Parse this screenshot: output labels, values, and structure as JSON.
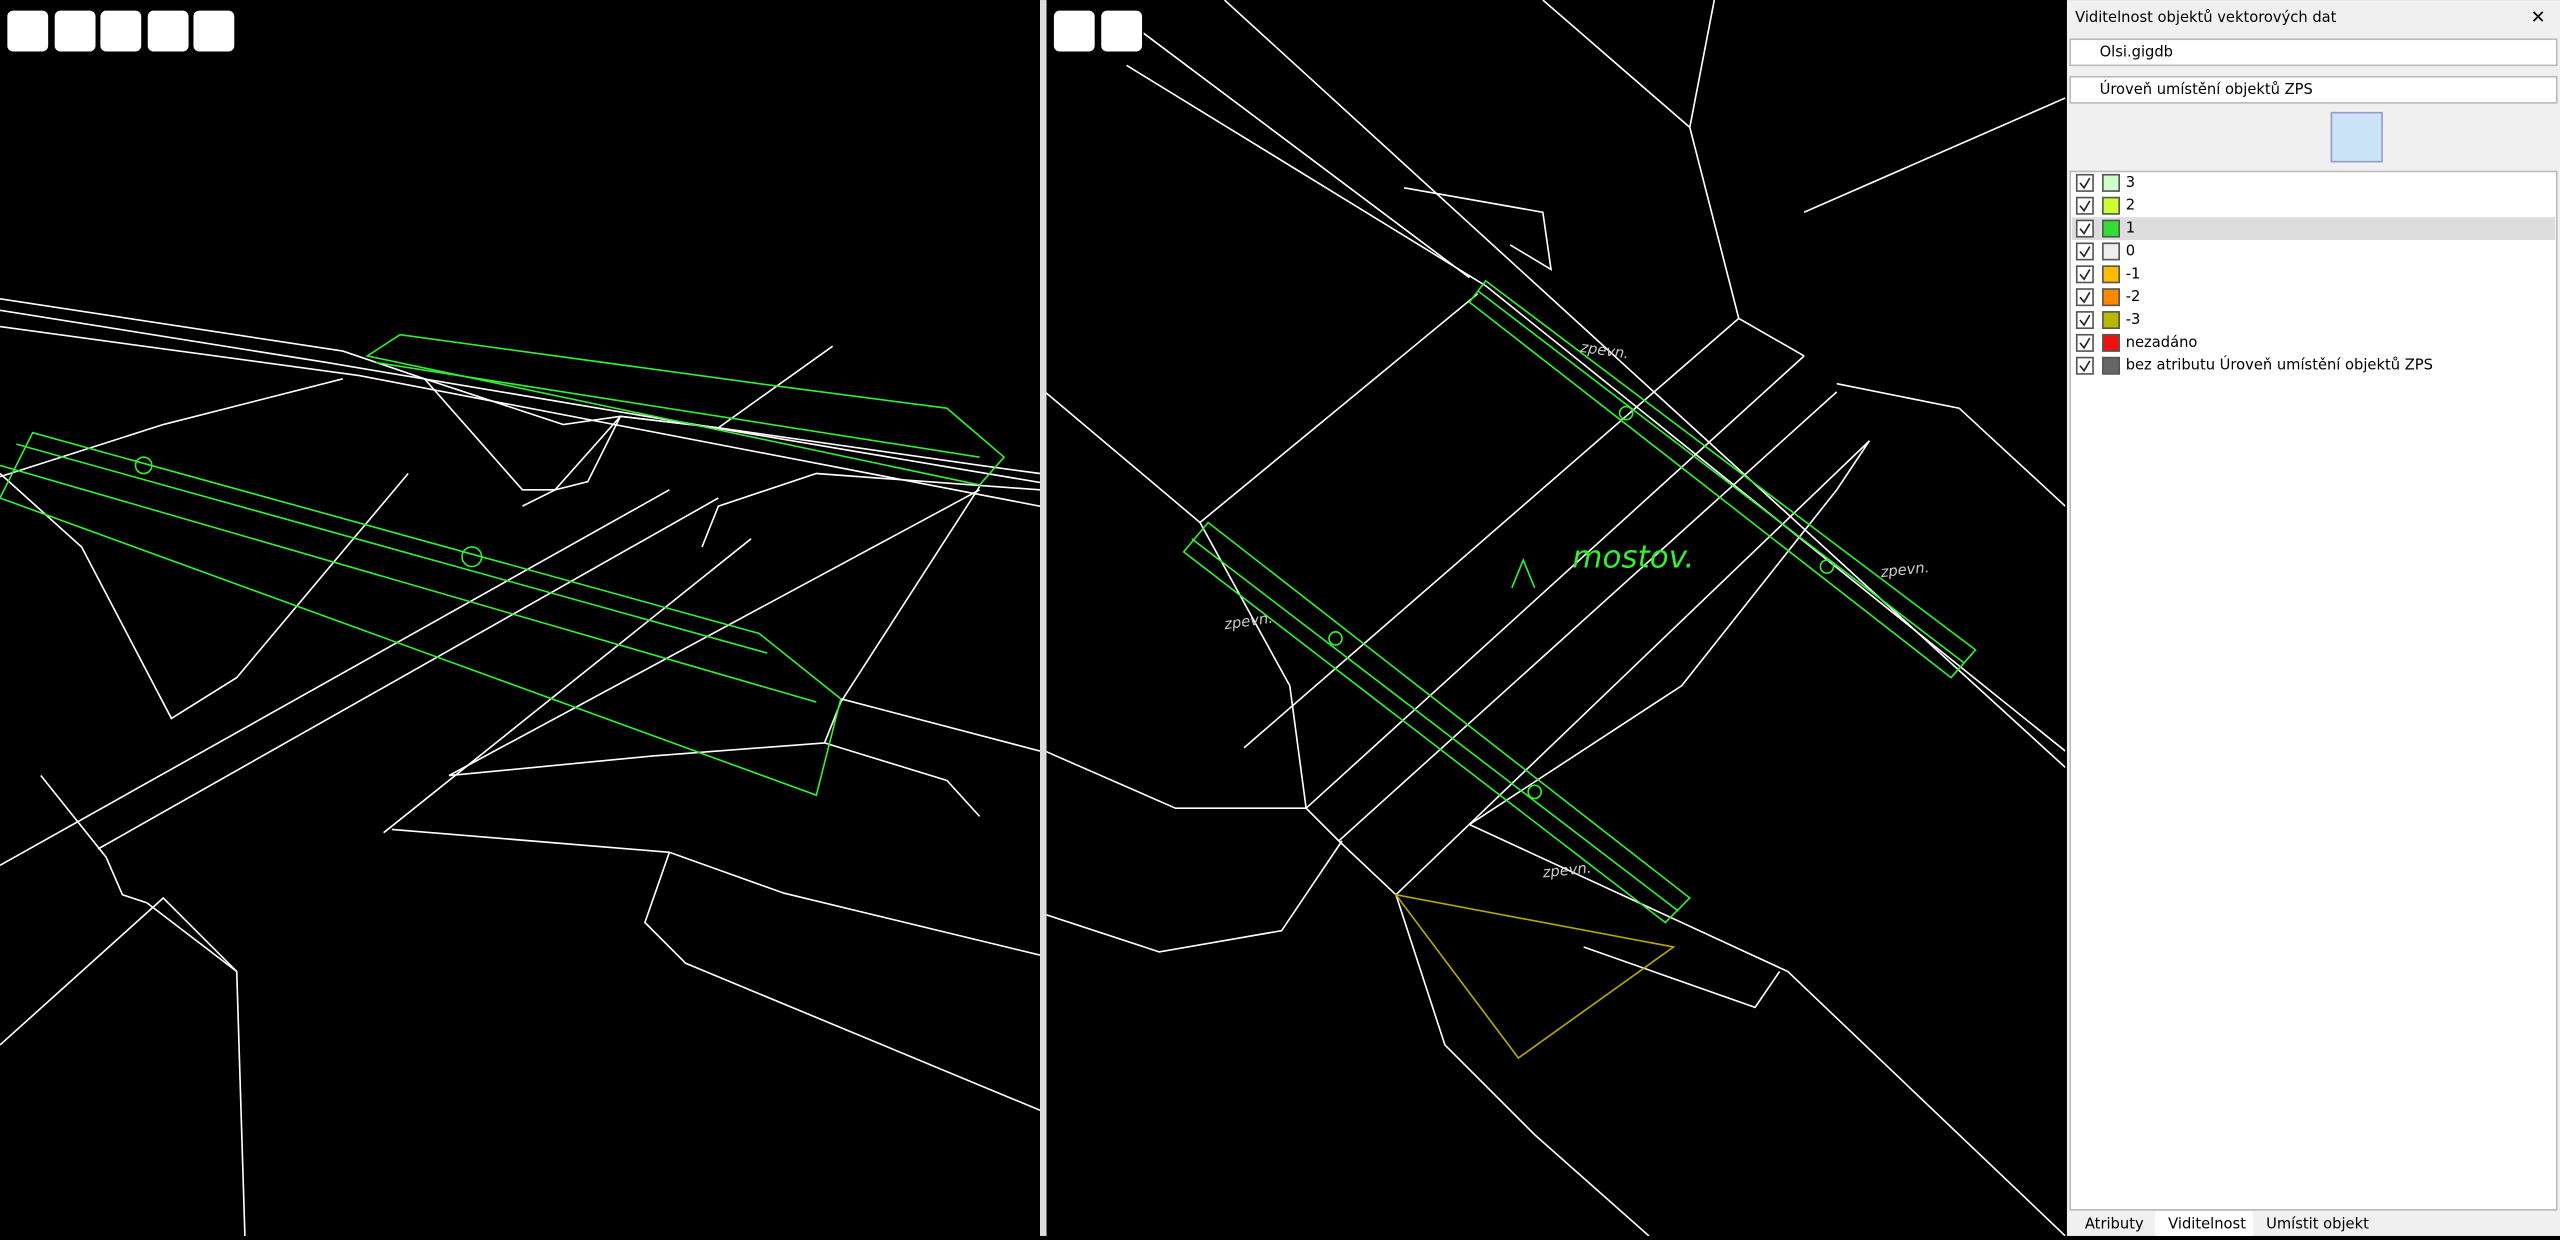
{
  "panel": {
    "title": "Viditelnost objektů vektorových dat",
    "source": "Olsi.gigdb",
    "filter": "Úroveň umístění objektů ZPS",
    "items": [
      {
        "label": "3",
        "color": "#ccffcc"
      },
      {
        "label": "2",
        "color": "#ccff33"
      },
      {
        "label": "1",
        "color": "#33dd33"
      },
      {
        "label": "0",
        "color": "#eeeeee"
      },
      {
        "label": "-1",
        "color": "#ffbb00"
      },
      {
        "label": "-2",
        "color": "#ff8800"
      },
      {
        "label": "-3",
        "color": "#b8b800"
      },
      {
        "label": "nezadáno",
        "color": "#ee1111"
      },
      {
        "label": "bez atributu Úroveň umístění objektů ZPS",
        "color": "#666666"
      }
    ],
    "tabs": [
      "Atributy",
      "Viditelnost",
      "Umístit objekt"
    ]
  },
  "map": {
    "labels": [
      "zpevn.",
      "zpevn.",
      "zpevn.",
      "zpevn."
    ],
    "feature_label": "mostov."
  }
}
